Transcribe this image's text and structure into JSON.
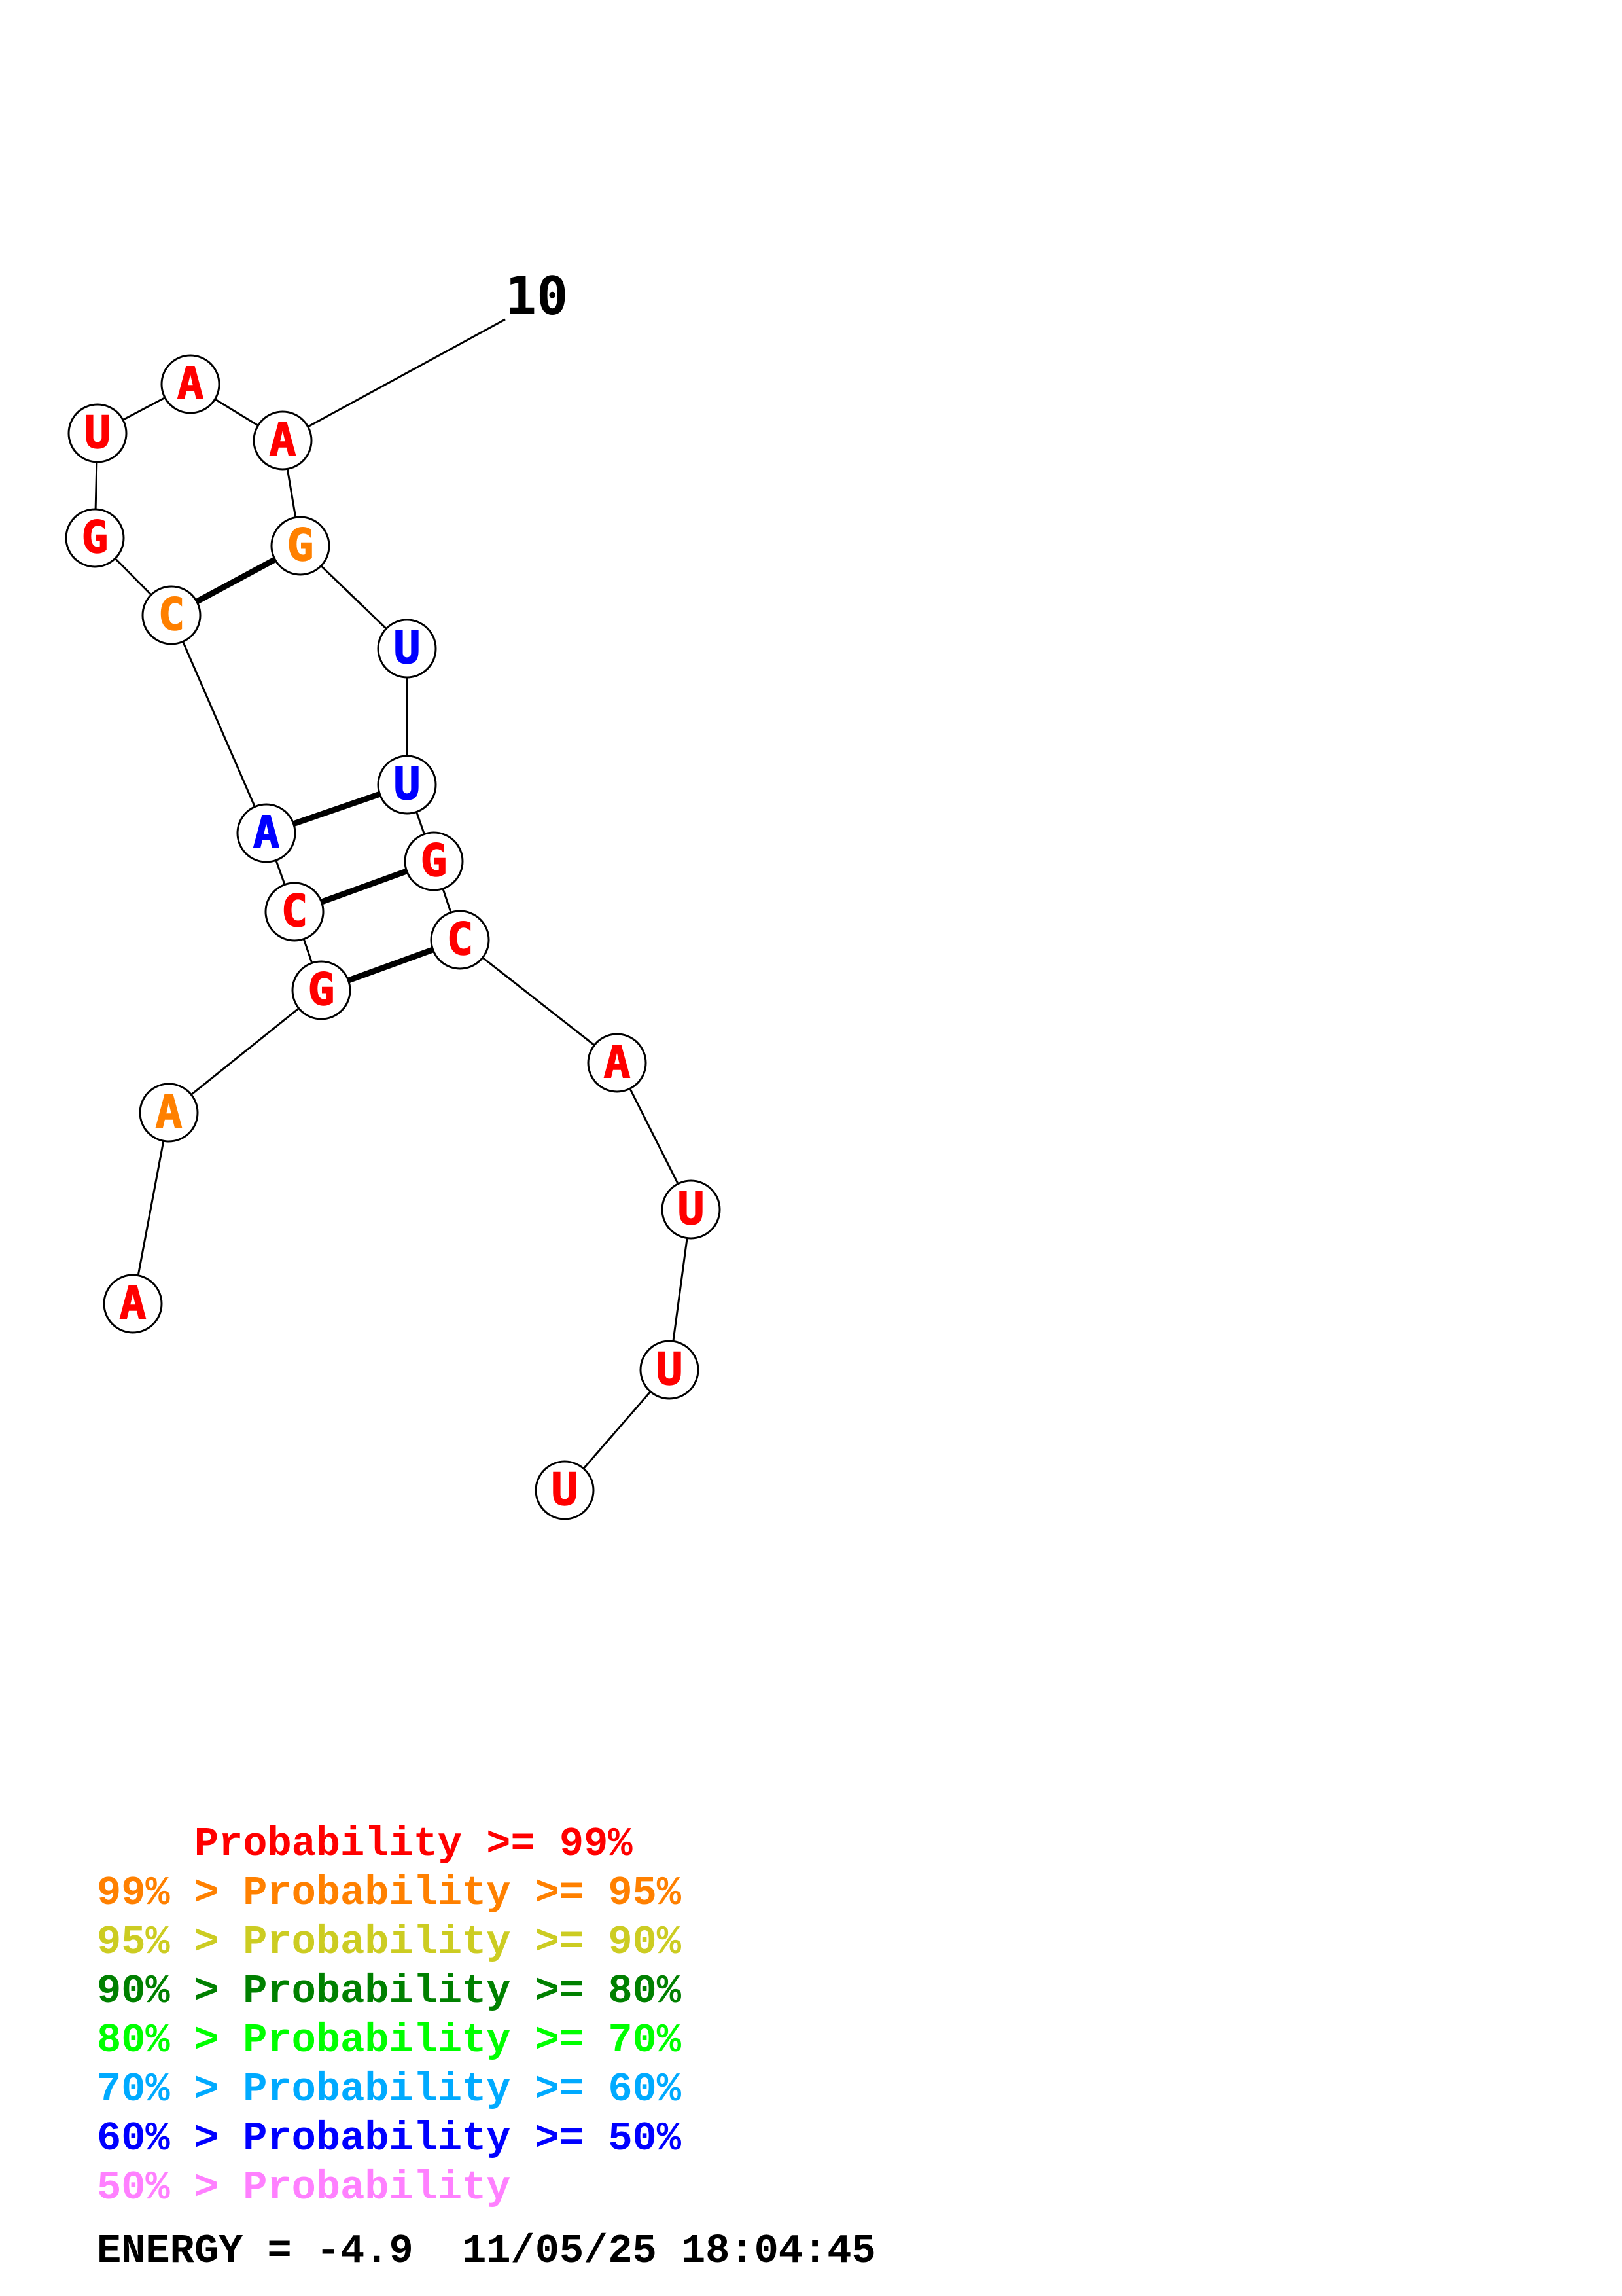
{
  "structure": {
    "position_label": "10",
    "energy_label": "ENERGY = -4.9",
    "timestamp": "11/05/25 18:04:45",
    "colors": {
      "red": "#ff0000",
      "orange": "#ff8000",
      "blue": "#0000ff",
      "outline": "#000000",
      "bond": "#000000"
    },
    "nucleotides": [
      {
        "index": 1,
        "base": "A",
        "color": "red"
      },
      {
        "index": 2,
        "base": "A",
        "color": "orange"
      },
      {
        "index": 3,
        "base": "G",
        "color": "red"
      },
      {
        "index": 4,
        "base": "C",
        "color": "red"
      },
      {
        "index": 5,
        "base": "A",
        "color": "blue"
      },
      {
        "index": 6,
        "base": "C",
        "color": "orange"
      },
      {
        "index": 7,
        "base": "G",
        "color": "red"
      },
      {
        "index": 8,
        "base": "U",
        "color": "red"
      },
      {
        "index": 9,
        "base": "A",
        "color": "red"
      },
      {
        "index": 10,
        "base": "A",
        "color": "red"
      },
      {
        "index": 11,
        "base": "G",
        "color": "orange"
      },
      {
        "index": 12,
        "base": "U",
        "color": "blue"
      },
      {
        "index": 13,
        "base": "U",
        "color": "blue"
      },
      {
        "index": 14,
        "base": "G",
        "color": "red"
      },
      {
        "index": 15,
        "base": "C",
        "color": "red"
      },
      {
        "index": 16,
        "base": "A",
        "color": "red"
      },
      {
        "index": 17,
        "base": "U",
        "color": "red"
      },
      {
        "index": 18,
        "base": "U",
        "color": "red"
      },
      {
        "index": 19,
        "base": "U",
        "color": "red"
      }
    ],
    "base_pairs": [
      [
        3,
        15
      ],
      [
        4,
        14
      ],
      [
        5,
        13
      ],
      [
        6,
        11
      ]
    ]
  },
  "legend": [
    {
      "prefix": "    ",
      "text": "Probability >= 99%",
      "color": "#ff0000"
    },
    {
      "prefix": "99% > ",
      "text": "Probability >= 95%",
      "color": "#ff8000"
    },
    {
      "prefix": "95% > ",
      "text": "Probability >= 90%",
      "color": "#cccc22"
    },
    {
      "prefix": "90% > ",
      "text": "Probability >= 80%",
      "color": "#008000"
    },
    {
      "prefix": "80% > ",
      "text": "Probability >= 70%",
      "color": "#00ff00"
    },
    {
      "prefix": "70% > ",
      "text": "Probability >= 60%",
      "color": "#00aaff"
    },
    {
      "prefix": "60% > ",
      "text": "Probability >= 50%",
      "color": "#0000ff"
    },
    {
      "prefix": "50% > ",
      "text": "Probability",
      "color": "#ff80ff"
    }
  ]
}
